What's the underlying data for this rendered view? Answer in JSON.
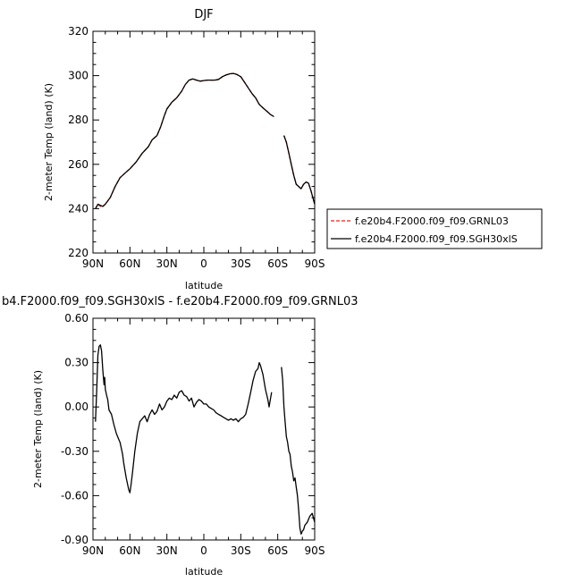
{
  "chart_data": [
    {
      "type": "line",
      "title": "DJF",
      "xlabel": "latitude",
      "ylabel": "2-meter Temp (land) (K)",
      "xlim": [
        -90,
        90
      ],
      "ylim": [
        220,
        320
      ],
      "xticks": [
        "90N",
        "60N",
        "30N",
        "0",
        "30S",
        "60S",
        "90S"
      ],
      "yticks": [
        "220",
        "240",
        "260",
        "280",
        "300",
        "320"
      ],
      "legend": {
        "placement": "right",
        "entries": [
          {
            "label": "f.e20b4.F2000.f09_f09.GRNL03",
            "color": "#e8231b",
            "style": "dashed"
          },
          {
            "label": "f.e20b4.F2000.f09_f09.SGH30xlS",
            "color": "#000000",
            "style": "solid"
          }
        ]
      },
      "series": [
        {
          "name": "f.e20b4.F2000.f09_f09.GRNL03",
          "color": "#e8231b",
          "segments": [
            [
              [
                -88,
                240
              ],
              [
                -86,
                242
              ],
              [
                -84,
                241
              ],
              [
                -82,
                241
              ],
              [
                -80,
                242
              ],
              [
                -76,
                245
              ],
              [
                -72,
                250
              ],
              [
                -68,
                254
              ],
              [
                -64,
                256
              ],
              [
                -60,
                258
              ],
              [
                -55,
                261
              ],
              [
                -50,
                265
              ],
              [
                -45,
                268
              ],
              [
                -42,
                271
              ],
              [
                -38,
                273
              ],
              [
                -35,
                277
              ],
              [
                -32,
                282
              ],
              [
                -30,
                285
              ],
              [
                -26,
                288
              ],
              [
                -22,
                290
              ],
              [
                -18,
                293
              ],
              [
                -15,
                296
              ],
              [
                -12,
                298
              ],
              [
                -9,
                298.5
              ],
              [
                -6,
                298
              ],
              [
                -3,
                297.5
              ],
              [
                0,
                297.8
              ],
              [
                3,
                298
              ],
              [
                6,
                298
              ],
              [
                9,
                298
              ],
              [
                12,
                298.3
              ],
              [
                15,
                299.5
              ],
              [
                18,
                300.3
              ],
              [
                21,
                300.8
              ],
              [
                24,
                301
              ],
              [
                27,
                300.5
              ],
              [
                30,
                299.5
              ],
              [
                33,
                297
              ],
              [
                36,
                294.5
              ],
              [
                39,
                292
              ],
              [
                42,
                290
              ],
              [
                45,
                287
              ],
              [
                48,
                285.5
              ],
              [
                51,
                284
              ],
              [
                54,
                282.5
              ],
              [
                57,
                281.5
              ]
            ],
            [
              [
                65,
                273
              ],
              [
                67,
                270
              ],
              [
                69,
                265
              ],
              [
                71,
                260
              ],
              [
                73,
                255
              ],
              [
                75,
                251
              ],
              [
                77,
                250
              ],
              [
                79,
                249
              ],
              [
                81,
                251
              ],
              [
                83,
                252
              ],
              [
                85,
                251.5
              ],
              [
                87,
                248
              ],
              [
                89,
                244
              ],
              [
                90,
                242
              ]
            ]
          ]
        },
        {
          "name": "f.e20b4.F2000.f09_f09.SGH30xlS",
          "color": "#000000",
          "segments": [
            [
              [
                -88,
                240
              ],
              [
                -86,
                242
              ],
              [
                -84,
                241.5
              ],
              [
                -82,
                241
              ],
              [
                -80,
                242
              ],
              [
                -76,
                245
              ],
              [
                -72,
                250
              ],
              [
                -68,
                254
              ],
              [
                -64,
                256
              ],
              [
                -60,
                258
              ],
              [
                -55,
                261
              ],
              [
                -50,
                265
              ],
              [
                -45,
                268
              ],
              [
                -42,
                271
              ],
              [
                -38,
                273
              ],
              [
                -35,
                277
              ],
              [
                -32,
                282
              ],
              [
                -30,
                285
              ],
              [
                -26,
                288
              ],
              [
                -22,
                290
              ],
              [
                -18,
                293
              ],
              [
                -15,
                296
              ],
              [
                -12,
                298
              ],
              [
                -9,
                298.5
              ],
              [
                -6,
                298
              ],
              [
                -3,
                297.5
              ],
              [
                0,
                297.8
              ],
              [
                3,
                298
              ],
              [
                6,
                298
              ],
              [
                9,
                298
              ],
              [
                12,
                298.3
              ],
              [
                15,
                299.5
              ],
              [
                18,
                300.3
              ],
              [
                21,
                300.8
              ],
              [
                24,
                301
              ],
              [
                27,
                300.5
              ],
              [
                30,
                299.5
              ],
              [
                33,
                297
              ],
              [
                36,
                294.5
              ],
              [
                39,
                292
              ],
              [
                42,
                290
              ],
              [
                45,
                287
              ],
              [
                48,
                285.5
              ],
              [
                51,
                284
              ],
              [
                54,
                282.5
              ],
              [
                57,
                281.5
              ]
            ],
            [
              [
                65,
                273
              ],
              [
                67,
                270
              ],
              [
                69,
                265
              ],
              [
                71,
                260
              ],
              [
                73,
                255
              ],
              [
                75,
                251
              ],
              [
                77,
                250
              ],
              [
                79,
                249
              ],
              [
                81,
                251
              ],
              [
                83,
                252
              ],
              [
                85,
                251.5
              ],
              [
                87,
                248
              ],
              [
                89,
                244
              ],
              [
                90,
                242
              ]
            ]
          ]
        }
      ]
    },
    {
      "type": "line",
      "title": "b4.F2000.f09_f09.SGH30xlS - f.e20b4.F2000.f09_f09.GRNL03",
      "xlabel": "latitude",
      "ylabel": "2-meter Temp (land) (K)",
      "xlim": [
        -90,
        90
      ],
      "ylim": [
        -0.9,
        0.6
      ],
      "xticks": [
        "90N",
        "60N",
        "30N",
        "0",
        "30S",
        "60S",
        "90S"
      ],
      "yticks": [
        "-0.90",
        "-0.60",
        "-0.30",
        "0.00",
        "0.30",
        "0.60"
      ],
      "series": [
        {
          "color": "#000000",
          "segments": [
            [
              [
                -88,
                -0.1
              ],
              [
                -87,
                0.1
              ],
              [
                -86,
                0.35
              ],
              [
                -85,
                0.41
              ],
              [
                -84,
                0.42
              ],
              [
                -83,
                0.38
              ],
              [
                -82,
                0.25
              ],
              [
                -81,
                0.15
              ],
              [
                -80.5,
                0.2
              ],
              [
                -80,
                0.12
              ],
              [
                -79,
                0.08
              ],
              [
                -78,
                0.05
              ],
              [
                -77,
                -0.02
              ],
              [
                -75,
                -0.05
              ],
              [
                -73,
                -0.12
              ],
              [
                -71,
                -0.18
              ],
              [
                -69,
                -0.22
              ],
              [
                -68,
                -0.24
              ],
              [
                -67,
                -0.28
              ],
              [
                -66,
                -0.32
              ],
              [
                -65,
                -0.38
              ],
              [
                -63,
                -0.48
              ],
              [
                -61,
                -0.56
              ],
              [
                -60,
                -0.58
              ],
              [
                -59,
                -0.52
              ],
              [
                -58,
                -0.45
              ],
              [
                -56,
                -0.3
              ],
              [
                -54,
                -0.18
              ],
              [
                -52,
                -0.1
              ],
              [
                -50,
                -0.08
              ],
              [
                -48,
                -0.06
              ],
              [
                -46,
                -0.1
              ],
              [
                -44,
                -0.05
              ],
              [
                -42,
                -0.02
              ],
              [
                -40,
                -0.05
              ],
              [
                -38,
                -0.03
              ],
              [
                -36,
                0.02
              ],
              [
                -34,
                -0.02
              ],
              [
                -32,
                0.0
              ],
              [
                -30,
                0.04
              ],
              [
                -28,
                0.06
              ],
              [
                -26,
                0.05
              ],
              [
                -24,
                0.08
              ],
              [
                -22,
                0.06
              ],
              [
                -20,
                0.1
              ],
              [
                -18,
                0.11
              ],
              [
                -16,
                0.08
              ],
              [
                -14,
                0.07
              ],
              [
                -12,
                0.04
              ],
              [
                -10,
                0.06
              ],
              [
                -8,
                0.0
              ],
              [
                -6,
                0.03
              ],
              [
                -4,
                0.05
              ],
              [
                -2,
                0.04
              ],
              [
                0,
                0.02
              ],
              [
                2,
                0.02
              ],
              [
                4,
                0.0
              ],
              [
                6,
                -0.01
              ],
              [
                8,
                -0.02
              ],
              [
                10,
                -0.04
              ],
              [
                12,
                -0.05
              ],
              [
                14,
                -0.06
              ],
              [
                16,
                -0.07
              ],
              [
                18,
                -0.08
              ],
              [
                20,
                -0.09
              ],
              [
                22,
                -0.08
              ],
              [
                24,
                -0.09
              ],
              [
                26,
                -0.08
              ],
              [
                28,
                -0.1
              ],
              [
                30,
                -0.08
              ],
              [
                32,
                -0.07
              ],
              [
                34,
                -0.05
              ],
              [
                36,
                0.02
              ],
              [
                38,
                0.1
              ],
              [
                40,
                0.18
              ],
              [
                42,
                0.24
              ],
              [
                44,
                0.26
              ],
              [
                45,
                0.3
              ],
              [
                46,
                0.28
              ],
              [
                48,
                0.22
              ],
              [
                50,
                0.12
              ],
              [
                52,
                0.05
              ],
              [
                53,
                0.0
              ],
              [
                55,
                0.1
              ]
            ],
            [
              [
                63,
                0.27
              ],
              [
                64,
                0.18
              ],
              [
                65,
                0.0
              ],
              [
                66,
                -0.1
              ],
              [
                67,
                -0.2
              ],
              [
                68,
                -0.24
              ],
              [
                69,
                -0.3
              ],
              [
                70,
                -0.32
              ],
              [
                71,
                -0.4
              ],
              [
                72,
                -0.44
              ],
              [
                73,
                -0.5
              ],
              [
                74,
                -0.48
              ],
              [
                75,
                -0.54
              ],
              [
                76,
                -0.6
              ],
              [
                77,
                -0.7
              ],
              [
                78,
                -0.82
              ],
              [
                79,
                -0.86
              ],
              [
                80,
                -0.84
              ],
              [
                81,
                -0.83
              ],
              [
                82,
                -0.8
              ],
              [
                84,
                -0.78
              ],
              [
                86,
                -0.74
              ],
              [
                88,
                -0.72
              ],
              [
                90,
                -0.78
              ]
            ]
          ]
        }
      ]
    }
  ]
}
